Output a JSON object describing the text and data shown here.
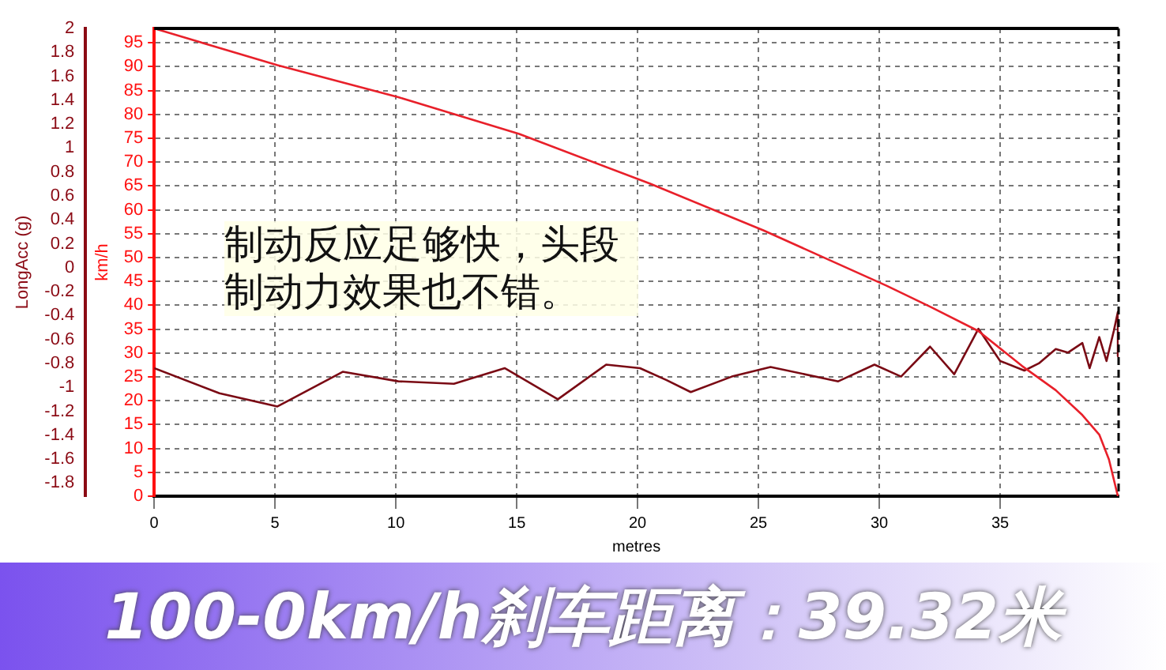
{
  "chart_data": {
    "type": "line",
    "title": "100-0km/h刹车距离：39.32米",
    "xlabel": "metres",
    "ylabel": "km/h",
    "y2label": "LongAcc (g)",
    "annotations": [
      "制动反应足够快，头段制动力效果也不错。"
    ],
    "xlim": [
      0,
      39.9
    ],
    "xticks": [
      0,
      5,
      10,
      15,
      20,
      25,
      30,
      35
    ],
    "ylim": [
      0,
      98
    ],
    "yticks": [
      0,
      5,
      10,
      15,
      20,
      25,
      30,
      35,
      40,
      45,
      50,
      55,
      60,
      65,
      70,
      75,
      80,
      85,
      90,
      95
    ],
    "y2lim": [
      -1.91,
      2
    ],
    "y2ticks": [
      -1.8,
      -1.6,
      -1.4,
      -1.2,
      -1,
      -0.8,
      -0.6,
      -0.4,
      -0.2,
      0,
      0.2,
      0.4,
      0.6,
      0.8,
      1,
      1.2,
      1.4,
      1.6,
      1.8,
      2
    ],
    "grid": true,
    "legend": false,
    "marker": "none",
    "series": [
      {
        "color": "#e8202a",
        "x": [
          0,
          5.1,
          10.1,
          15.1,
          20.5,
          25.2,
          30.3,
          32.1,
          34.1,
          35.9,
          37.3,
          38.4,
          39.1,
          39.5,
          39.87
        ],
        "values": [
          98,
          90.3,
          83.6,
          75.9,
          65.5,
          55.7,
          44.1,
          39.7,
          34.6,
          27.3,
          22.2,
          17,
          12.9,
          7.7,
          0
        ]
      },
      {
        "color": "#7a0a14",
        "axis": "y2",
        "x": [
          0,
          2.7,
          5.1,
          7.8,
          10.1,
          12.4,
          14.5,
          16.7,
          18.7,
          20.1,
          21.2,
          22.2,
          23.9,
          25.5,
          28.3,
          29.8,
          30.9,
          32.1,
          33.1,
          34.1,
          35,
          36,
          36.6,
          37.3,
          37.8,
          38.4,
          38.7,
          39.1,
          39.4,
          39.7,
          39.87,
          39.87
        ],
        "values": [
          -0.84,
          -1.05,
          -1.16,
          -0.87,
          -0.95,
          -0.97,
          -0.84,
          -1.1,
          -0.81,
          -0.84,
          -0.94,
          -1.04,
          -0.91,
          -0.83,
          -0.95,
          -0.81,
          -0.91,
          -0.66,
          -0.89,
          -0.51,
          -0.78,
          -0.86,
          -0.8,
          -0.68,
          -0.71,
          -0.63,
          -0.84,
          -0.58,
          -0.78,
          -0.53,
          -0.37,
          -0.74
        ]
      }
    ]
  }
}
